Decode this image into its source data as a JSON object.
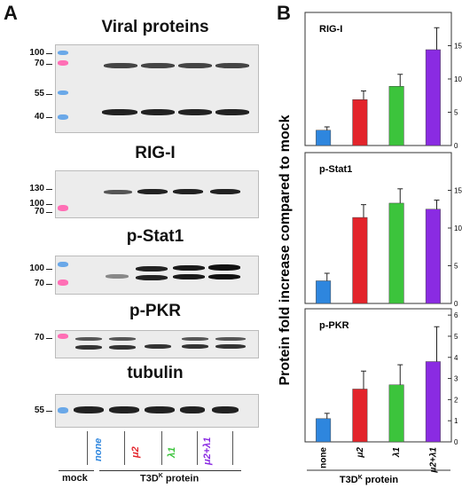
{
  "panel_a": {
    "letter": "A",
    "blots": [
      {
        "title": "Viral proteins",
        "mw": [
          "100",
          "70",
          "55",
          "40"
        ]
      },
      {
        "title": "RIG-I",
        "mw": [
          "130",
          "100",
          "70"
        ]
      },
      {
        "title": "p-Stat1",
        "mw": [
          "100",
          "70"
        ]
      },
      {
        "title": "p-PKR",
        "mw": [
          "70"
        ]
      },
      {
        "title": "tubulin",
        "mw": [
          "55"
        ]
      }
    ],
    "lanes": [
      "none",
      "μ2",
      "λ1",
      "μ2+λ1"
    ],
    "lane_colors": [
      "#2e86de",
      "#e3242b",
      "#3cc43c",
      "#8a2be2"
    ],
    "mock_label": "mock",
    "protein_label": "T3D",
    "protein_label_sup": "K",
    "protein_label_tail": " protein"
  },
  "panel_b": {
    "letter": "B",
    "ylabel": "Protein fold increase compared to mock",
    "xlabel": "T3D",
    "xlabel_sup": "K",
    "xlabel_tail": " protein"
  },
  "chart_data": [
    {
      "type": "bar",
      "title": "RIG-I",
      "categories": [
        "none",
        "μ2",
        "λ1",
        "μ2+λ1"
      ],
      "values": [
        2.3,
        6.9,
        8.9,
        14.4
      ],
      "errors": [
        0.5,
        1.3,
        1.8,
        3.3
      ],
      "yticks": [
        0,
        5,
        10,
        15
      ],
      "ylim": [
        0,
        20
      ],
      "colors": [
        "#2e86de",
        "#e3242b",
        "#3cc43c",
        "#8a2be2"
      ]
    },
    {
      "type": "bar",
      "title": "p-Stat1",
      "categories": [
        "none",
        "μ2",
        "λ1",
        "μ2+λ1"
      ],
      "values": [
        3.0,
        11.4,
        13.3,
        12.5
      ],
      "errors": [
        1.0,
        1.7,
        1.9,
        1.2
      ],
      "yticks": [
        0,
        5,
        10,
        15
      ],
      "ylim": [
        0,
        20
      ],
      "colors": [
        "#2e86de",
        "#e3242b",
        "#3cc43c",
        "#8a2be2"
      ]
    },
    {
      "type": "bar",
      "title": "p-PKR",
      "categories": [
        "none",
        "μ2",
        "λ1",
        "μ2+λ1"
      ],
      "values": [
        1.1,
        2.5,
        2.7,
        3.8
      ],
      "errors": [
        0.25,
        0.85,
        0.95,
        1.65
      ],
      "yticks": [
        0,
        1,
        2,
        3,
        4,
        5,
        6
      ],
      "ylim": [
        0,
        6.3
      ],
      "colors": [
        "#2e86de",
        "#e3242b",
        "#3cc43c",
        "#8a2be2"
      ]
    }
  ]
}
